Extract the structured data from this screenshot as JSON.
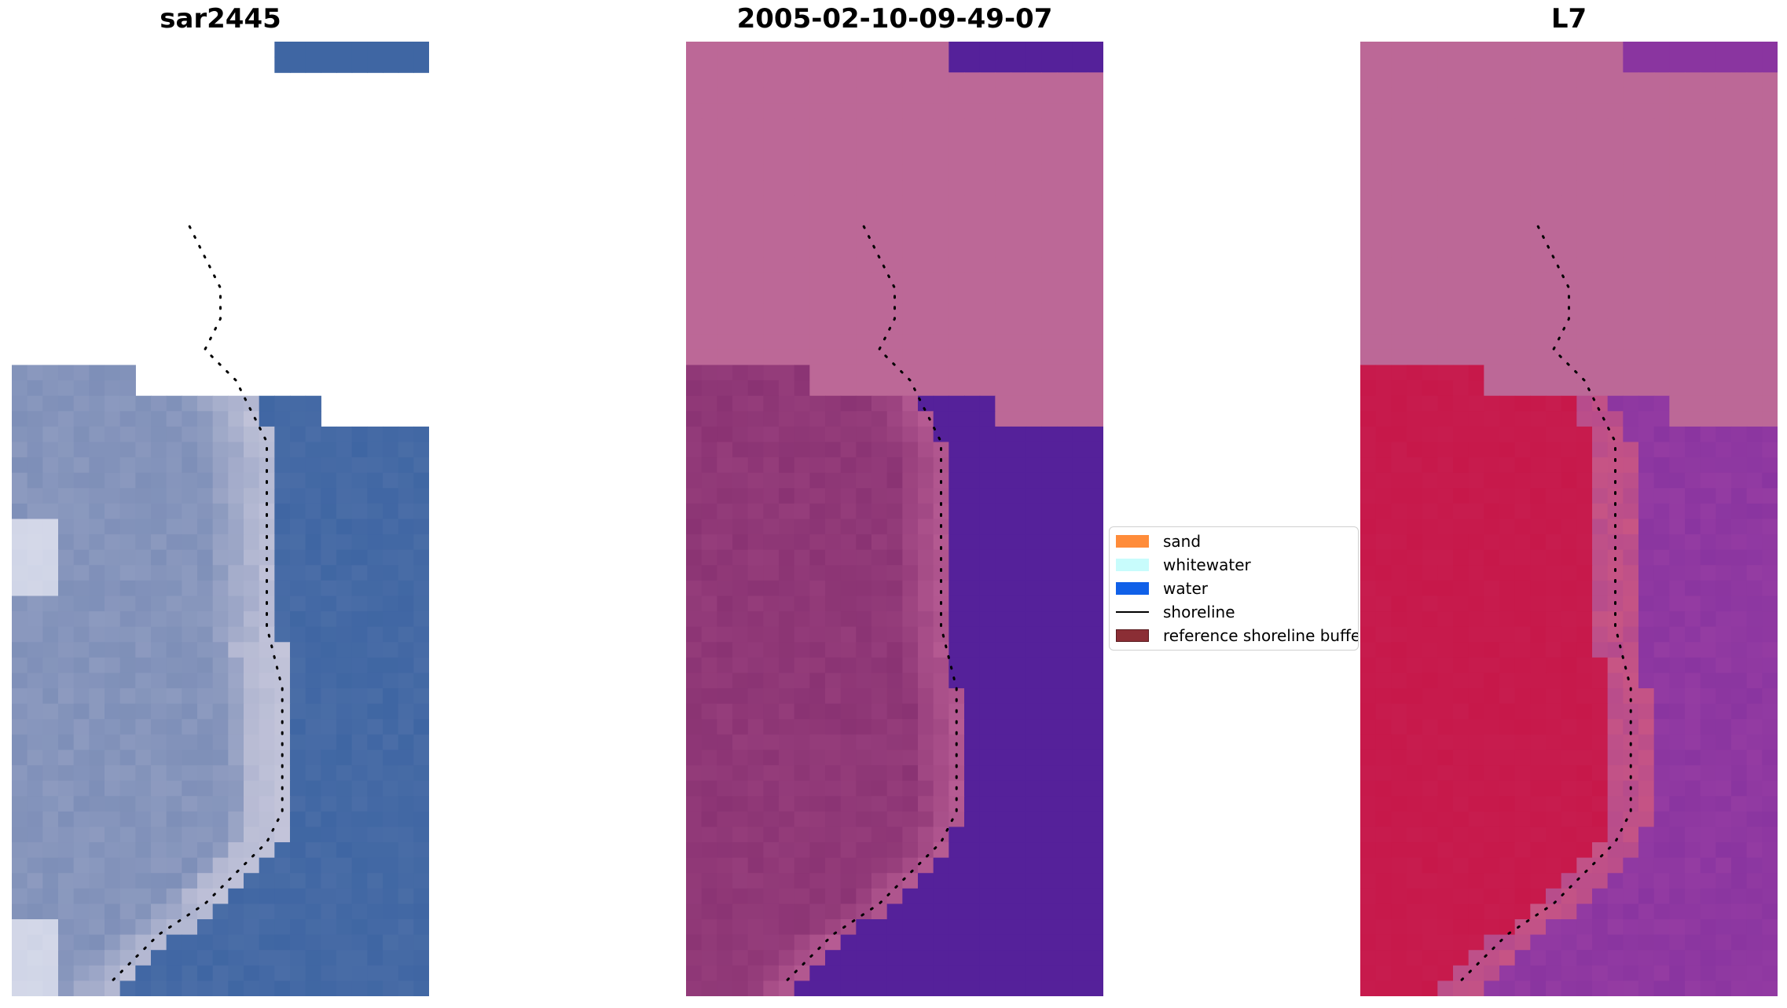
{
  "panels": [
    {
      "title": "sar2445",
      "style": "rgb",
      "colors": {
        "water": "#3f66a3",
        "land": "#7e8fb8",
        "sand": "#c8c8dc",
        "bright": "#f2f2fa"
      }
    },
    {
      "title": "2005-02-10-09-49-07",
      "style": "class",
      "colors": {
        "water": "#55219a",
        "land": "#8a3373",
        "sand": "#b55a92",
        "nodata": "#bc6897"
      }
    },
    {
      "title": "L7",
      "style": "index",
      "colors": {
        "water": "#8a35a0",
        "land": "#c7184a",
        "sand": "#c85584",
        "nodata": "#bc6897"
      }
    }
  ],
  "legend": {
    "items": [
      {
        "label": "sand",
        "color": "#ff8c3a",
        "kind": "patch"
      },
      {
        "label": "whitewater",
        "color": "#c8fcfc",
        "kind": "patch"
      },
      {
        "label": "water",
        "color": "#1060e8",
        "kind": "patch"
      },
      {
        "label": "shoreline",
        "color": "#000000",
        "kind": "line"
      },
      {
        "label": "reference shoreline buffer",
        "color": "#8b2e35",
        "kind": "patch"
      }
    ]
  }
}
